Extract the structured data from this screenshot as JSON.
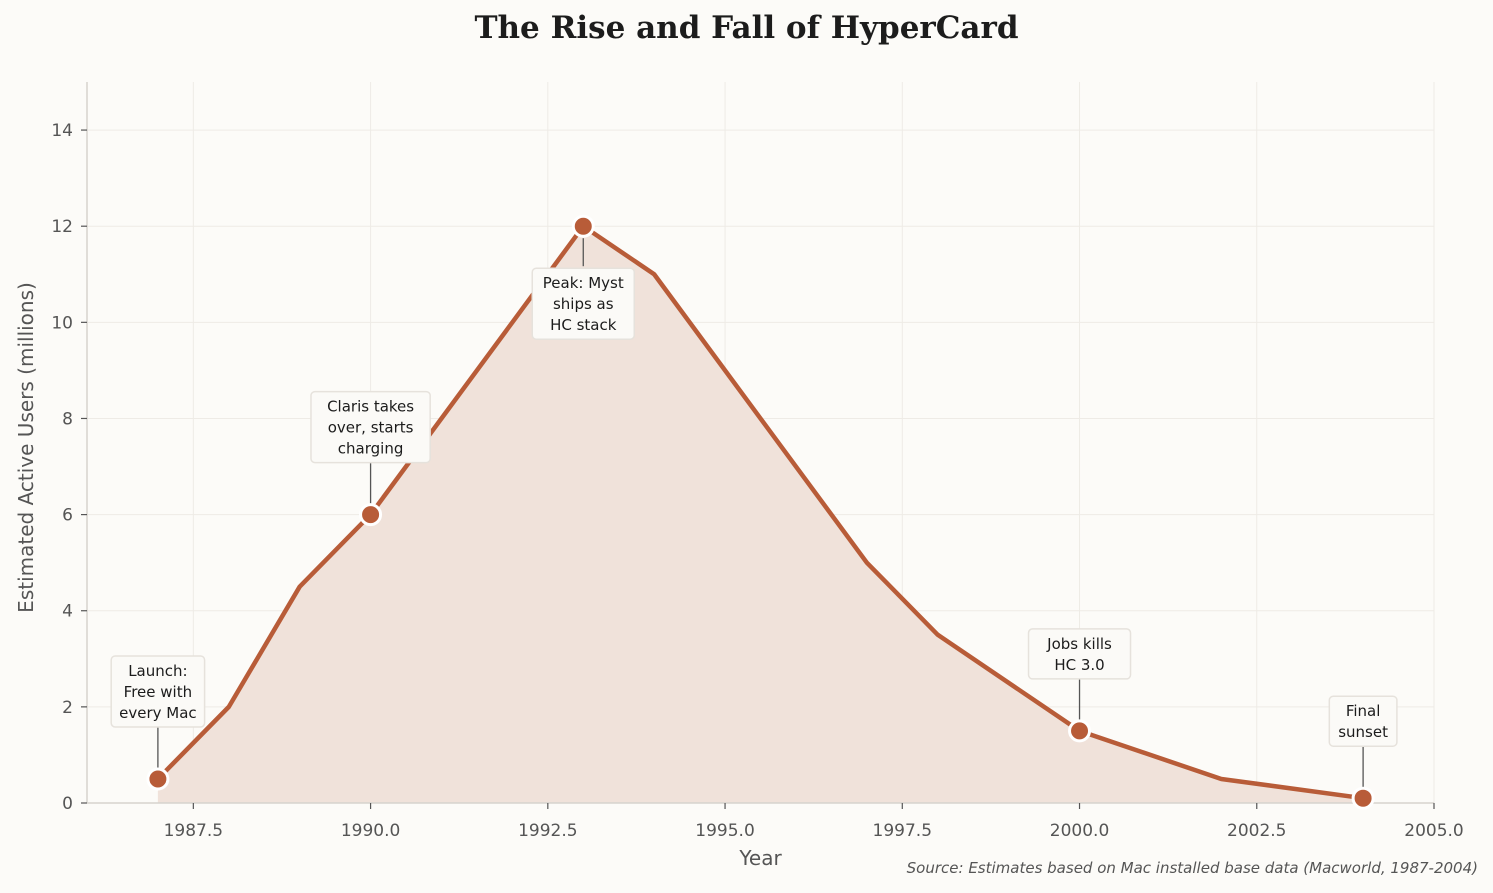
{
  "chart_data": {
    "type": "area",
    "title": "The Rise and Fall of HyperCard",
    "xlabel": "Year",
    "ylabel": "Estimated Active Users (millions)",
    "source": "Source: Estimates based on Mac installed base data (Macworld, 1987-2004)",
    "xlim": [
      1986,
      2005
    ],
    "ylim": [
      0,
      15
    ],
    "xticks": [
      "1987.5",
      "1990.0",
      "1992.5",
      "1995.0",
      "1997.5",
      "2000.0",
      "2002.5",
      "2005.0"
    ],
    "yticks": [
      "0",
      "2",
      "4",
      "6",
      "8",
      "10",
      "12",
      "14"
    ],
    "grid": true,
    "color": "#b85c38",
    "fill_color": "#f0e2da",
    "series": [
      {
        "x": [
          1987,
          1988,
          1989,
          1990,
          1993,
          1994,
          1997,
          1998,
          2000,
          2002,
          2004
        ],
        "y": [
          0.5,
          2,
          4.5,
          6,
          12,
          11,
          5,
          3.5,
          1.5,
          0.5,
          0.1
        ]
      }
    ],
    "annotations": [
      {
        "x": 1987,
        "y": 0.5,
        "lines": [
          "Launch:",
          "Free with",
          "every Mac"
        ],
        "position": "above"
      },
      {
        "x": 1990,
        "y": 6,
        "lines": [
          "Claris takes",
          "over, starts",
          "charging"
        ],
        "position": "above"
      },
      {
        "x": 1993,
        "y": 12,
        "lines": [
          "Peak: Myst",
          "ships as",
          "HC stack"
        ],
        "position": "below"
      },
      {
        "x": 2000,
        "y": 1.5,
        "lines": [
          "Jobs kills",
          "HC 3.0"
        ],
        "position": "above"
      },
      {
        "x": 2004,
        "y": 0.1,
        "lines": [
          "Final",
          "sunset"
        ],
        "position": "above"
      }
    ]
  }
}
